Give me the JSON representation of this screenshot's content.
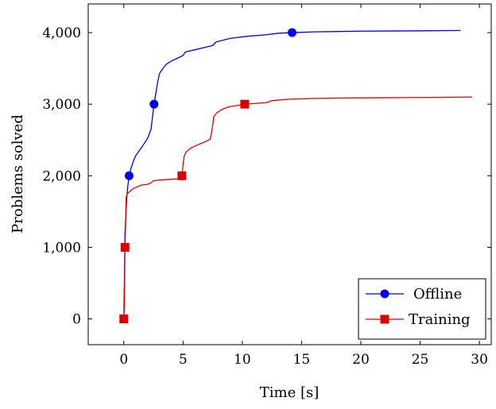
{
  "chart_data": {
    "type": "line",
    "xlabel": "Time [s]",
    "ylabel": "Problems solved",
    "xlim": [
      -3,
      31
    ],
    "ylim": [
      -360,
      4400
    ],
    "x_ticks": [
      0,
      5,
      10,
      15,
      20,
      25,
      30
    ],
    "x_tick_labels": [
      "0",
      "5",
      "10",
      "15",
      "20",
      "25",
      "30"
    ],
    "y_ticks": [
      0,
      1000,
      2000,
      3000,
      4000
    ],
    "y_tick_labels": [
      "0",
      "1,000",
      "2,000",
      "3,000",
      "4,000"
    ],
    "grid": false,
    "legend_position": "bottom-right",
    "series": [
      {
        "name": "Offline",
        "color": "#0000ee",
        "marker": "circle",
        "x": [
          0,
          0.05,
          0.1,
          0.2,
          0.3,
          0.45,
          0.6,
          0.8,
          1.0,
          1.3,
          1.6,
          2.0,
          2.3,
          2.55,
          2.7,
          2.85,
          3.0,
          3.1,
          3.3,
          3.6,
          4.0,
          4.5,
          5.0,
          5.2,
          6.0,
          7.0,
          7.5,
          7.8,
          9.0,
          10.5,
          12.0,
          13.0,
          14.2,
          16.0,
          18.0,
          20.0,
          22.0,
          25.0,
          28.4
        ],
        "y": [
          0,
          500,
          1200,
          1550,
          1800,
          2000,
          2100,
          2200,
          2280,
          2350,
          2420,
          2520,
          2650,
          3000,
          3150,
          3300,
          3420,
          3450,
          3500,
          3560,
          3600,
          3640,
          3680,
          3730,
          3760,
          3800,
          3820,
          3870,
          3920,
          3950,
          3970,
          3990,
          4000,
          4010,
          4015,
          4020,
          4022,
          4025,
          4030
        ],
        "marker_x": [
          0.45,
          2.55,
          14.2
        ],
        "marker_y": [
          2000,
          3000,
          4000
        ]
      },
      {
        "name": "Training",
        "color": "#dd0000",
        "marker": "square",
        "x": [
          0,
          0.05,
          0.1,
          0.15,
          0.2,
          0.3,
          0.5,
          0.8,
          1.2,
          1.5,
          2.0,
          2.3,
          2.5,
          3.0,
          4.0,
          4.8,
          4.9,
          5.0,
          5.1,
          5.3,
          5.7,
          6.2,
          6.8,
          7.3,
          7.5,
          7.6,
          7.8,
          8.2,
          8.8,
          9.5,
          10.2,
          11.0,
          12.0,
          12.5,
          14.0,
          16.0,
          18.0,
          22.0,
          26.0,
          29.4
        ],
        "y": [
          0,
          200,
          1000,
          1300,
          1700,
          1750,
          1780,
          1820,
          1850,
          1870,
          1880,
          1900,
          1930,
          1940,
          1950,
          1960,
          2000,
          2150,
          2280,
          2340,
          2390,
          2430,
          2470,
          2510,
          2700,
          2830,
          2870,
          2920,
          2960,
          2980,
          3000,
          3010,
          3020,
          3050,
          3070,
          3080,
          3085,
          3090,
          3095,
          3100
        ],
        "marker_x": [
          0,
          0.1,
          4.9,
          10.2
        ],
        "marker_y": [
          0,
          1000,
          2000,
          3000
        ]
      }
    ]
  }
}
